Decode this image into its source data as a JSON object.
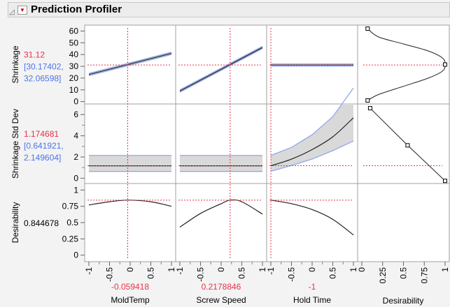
{
  "header": {
    "title": "Prediction Profiler"
  },
  "colors": {
    "red": "#e8324a",
    "blue": "#4d74e8",
    "band": "#d9d9d9",
    "bandEdge": "#8fa8ec"
  },
  "chart_data": {
    "type": "line",
    "factors": [
      {
        "name": "MoldTemp",
        "current": -0.059418,
        "current_label": "-0.059418",
        "xlim": [
          -1,
          1
        ],
        "ticks": [
          "-1",
          "-0.5",
          "0",
          "0.5",
          "1"
        ]
      },
      {
        "name": "Screw Speed",
        "current": 0.2178846,
        "current_label": "0.2178846",
        "xlim": [
          -1,
          1
        ],
        "ticks": [
          "-1",
          "-0.5",
          "0",
          "0.5",
          "1"
        ]
      },
      {
        "name": "Hold Time",
        "current": -1,
        "current_label": "-1",
        "xlim": [
          -1,
          1
        ],
        "ticks": [
          "-1",
          "-0.5",
          "0",
          "0.5",
          "1"
        ]
      }
    ],
    "desirability_axis": {
      "name": "Desirability",
      "xlim": [
        0,
        1
      ],
      "ticks": [
        "0",
        "0.25",
        "0.5",
        "0.75",
        "1"
      ]
    },
    "responses": [
      {
        "name": "Shrinkage",
        "value": "31.12",
        "ci": "[30.17402,",
        "ci2": "32.06598]",
        "current": 31.12,
        "ylim": [
          -2,
          65
        ],
        "ticks": [
          0,
          10,
          20,
          30,
          40,
          50,
          60
        ],
        "minor": [],
        "profiles": [
          {
            "x": [
              -1,
              1
            ],
            "y": [
              23,
              41
            ],
            "lo": [
              22,
              40
            ],
            "hi": [
              24,
              42
            ]
          },
          {
            "x": [
              -1,
              1
            ],
            "y": [
              9,
              46
            ],
            "lo": [
              8,
              45
            ],
            "hi": [
              10,
              47
            ]
          },
          {
            "x": [
              -1,
              1
            ],
            "y": [
              31.1,
              31.1
            ],
            "lo": [
              30.2,
              30.2
            ],
            "hi": [
              32,
              32
            ]
          }
        ],
        "desirability_fn": {
          "d": [
            0.07,
            0.2,
            0.5,
            0.8,
            0.97,
            1.0,
            0.97,
            0.8,
            0.5,
            0.2,
            0.07
          ],
          "y": [
            62,
            55,
            49,
            43,
            37,
            31.5,
            26,
            20,
            13,
            6,
            1
          ],
          "points": [
            [
              0.07,
              62
            ],
            [
              1.0,
              31.5
            ],
            [
              0.07,
              1
            ]
          ]
        }
      },
      {
        "name": "Shrinkage Std Dev",
        "value": "1.174681",
        "ci": "[0.641921,",
        "ci2": "2.149604]",
        "current": 1.174681,
        "ylim": [
          -0.5,
          7
        ],
        "ticks": [
          0,
          2,
          4,
          6
        ],
        "minor": [
          1,
          3,
          5
        ],
        "profiles": [
          {
            "x": [
              -1,
              1
            ],
            "y": [
              1.17,
              1.17
            ],
            "lo": [
              0.64,
              0.64
            ],
            "hi": [
              2.15,
              2.15
            ]
          },
          {
            "x": [
              -1,
              1
            ],
            "y": [
              1.17,
              1.17
            ],
            "lo": [
              0.64,
              0.64
            ],
            "hi": [
              2.15,
              2.15
            ]
          },
          {
            "x": [
              -1,
              -0.5,
              0,
              0.5,
              1
            ],
            "y": [
              1.17,
              1.8,
              2.7,
              3.9,
              5.7
            ],
            "lo": [
              0.65,
              1.2,
              1.8,
              2.6,
              3.5
            ],
            "hi": [
              2.15,
              2.9,
              4.1,
              5.8,
              8.5
            ]
          }
        ],
        "desirability_fn": {
          "d": [
            0.1,
            0.55,
            1.0
          ],
          "y": [
            6.6,
            3.1,
            -0.25
          ],
          "points": [
            [
              0.1,
              6.6
            ],
            [
              0.55,
              3.1
            ],
            [
              1.0,
              -0.25
            ]
          ]
        }
      },
      {
        "name": "Desirability",
        "value": "0.844678",
        "current": 0.844678,
        "ylim": [
          -0.1,
          1.1
        ],
        "ticks": [
          "0",
          "0.25",
          "0.5",
          "0.75",
          "1"
        ],
        "tickvals": [
          0,
          0.25,
          0.5,
          0.75,
          1
        ],
        "profiles": [
          {
            "x": [
              -1,
              -0.5,
              -0.06,
              0.5,
              1
            ],
            "y": [
              0.77,
              0.82,
              0.845,
              0.82,
              0.75
            ]
          },
          {
            "x": [
              -1,
              -0.5,
              0,
              0.22,
              0.5,
              1
            ],
            "y": [
              0.43,
              0.64,
              0.79,
              0.845,
              0.82,
              0.63
            ]
          },
          {
            "x": [
              -1,
              -0.5,
              0,
              0.5,
              1
            ],
            "y": [
              0.845,
              0.79,
              0.7,
              0.55,
              0.31
            ]
          }
        ]
      }
    ]
  }
}
